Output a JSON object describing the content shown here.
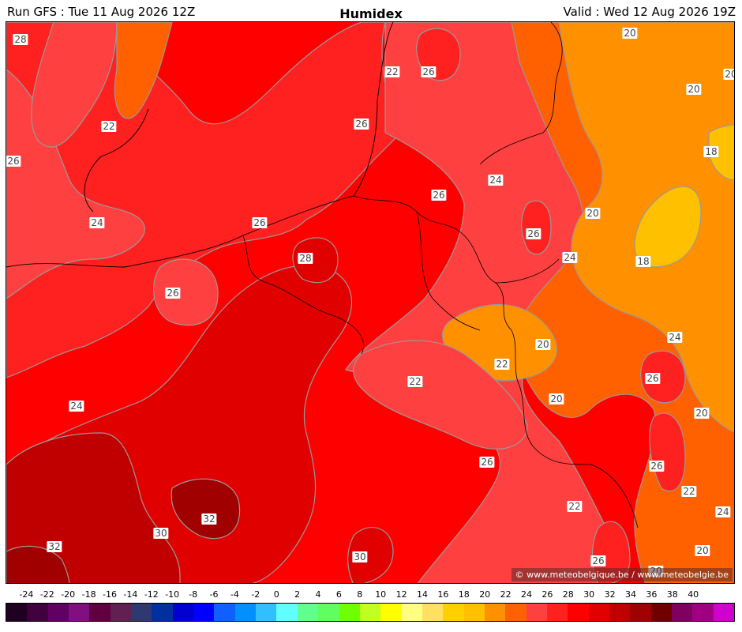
{
  "header": {
    "run": "Run GFS : Tue 11 Aug 2026 12Z",
    "title": "Humidex",
    "valid": "Valid : Wed 12 Aug 2026 19Z"
  },
  "copyright": "© www.meteobelgique.be / www.meteobelgie.be",
  "contour_labels": [
    "28",
    "22",
    "26",
    "26",
    "22",
    "26",
    "24",
    "26",
    "24",
    "20",
    "26",
    "20",
    "20",
    "18",
    "20",
    "26",
    "28",
    "24",
    "26",
    "24",
    "18",
    "20",
    "24",
    "22",
    "22",
    "26",
    "20",
    "26",
    "20",
    "26",
    "22",
    "26",
    "24",
    "22",
    "32",
    "30",
    "32",
    "30",
    "26",
    "20",
    "20"
  ],
  "legend": {
    "ticks": [
      "-24",
      "-22",
      "-20",
      "-18",
      "-16",
      "-14",
      "-12",
      "-10",
      "-8",
      "-6",
      "-4",
      "-2",
      "0",
      "2",
      "4",
      "6",
      "8",
      "10",
      "12",
      "14",
      "16",
      "18",
      "20",
      "22",
      "24",
      "26",
      "28",
      "30",
      "32",
      "34",
      "36",
      "38",
      "40"
    ],
    "colors": [
      "#200020",
      "#400040",
      "#600060",
      "#801080",
      "#600040",
      "#602050",
      "#303870",
      "#0030a0",
      "#0000d0",
      "#0000ff",
      "#1060ff",
      "#0090ff",
      "#30c0ff",
      "#60ffff",
      "#60ff90",
      "#60ff60",
      "#70ff00",
      "#c0ff20",
      "#ffff00",
      "#ffff80",
      "#ffe060",
      "#ffd000",
      "#ffc000",
      "#ff9000",
      "#ff6000",
      "#ff4040",
      "#ff2020",
      "#ff0000",
      "#e00000",
      "#c00000",
      "#a00000",
      "#700000",
      "#800060",
      "#a00080",
      "#d000d0"
    ]
  },
  "colors": {
    "h18": "#ffc000",
    "h20": "#ff9000",
    "h22": "#ff6000",
    "h24": "#ff4040",
    "h26": "#ff2020",
    "h28": "#ff0000",
    "h30": "#e00000",
    "h32": "#c00000",
    "h34": "#a00000"
  }
}
